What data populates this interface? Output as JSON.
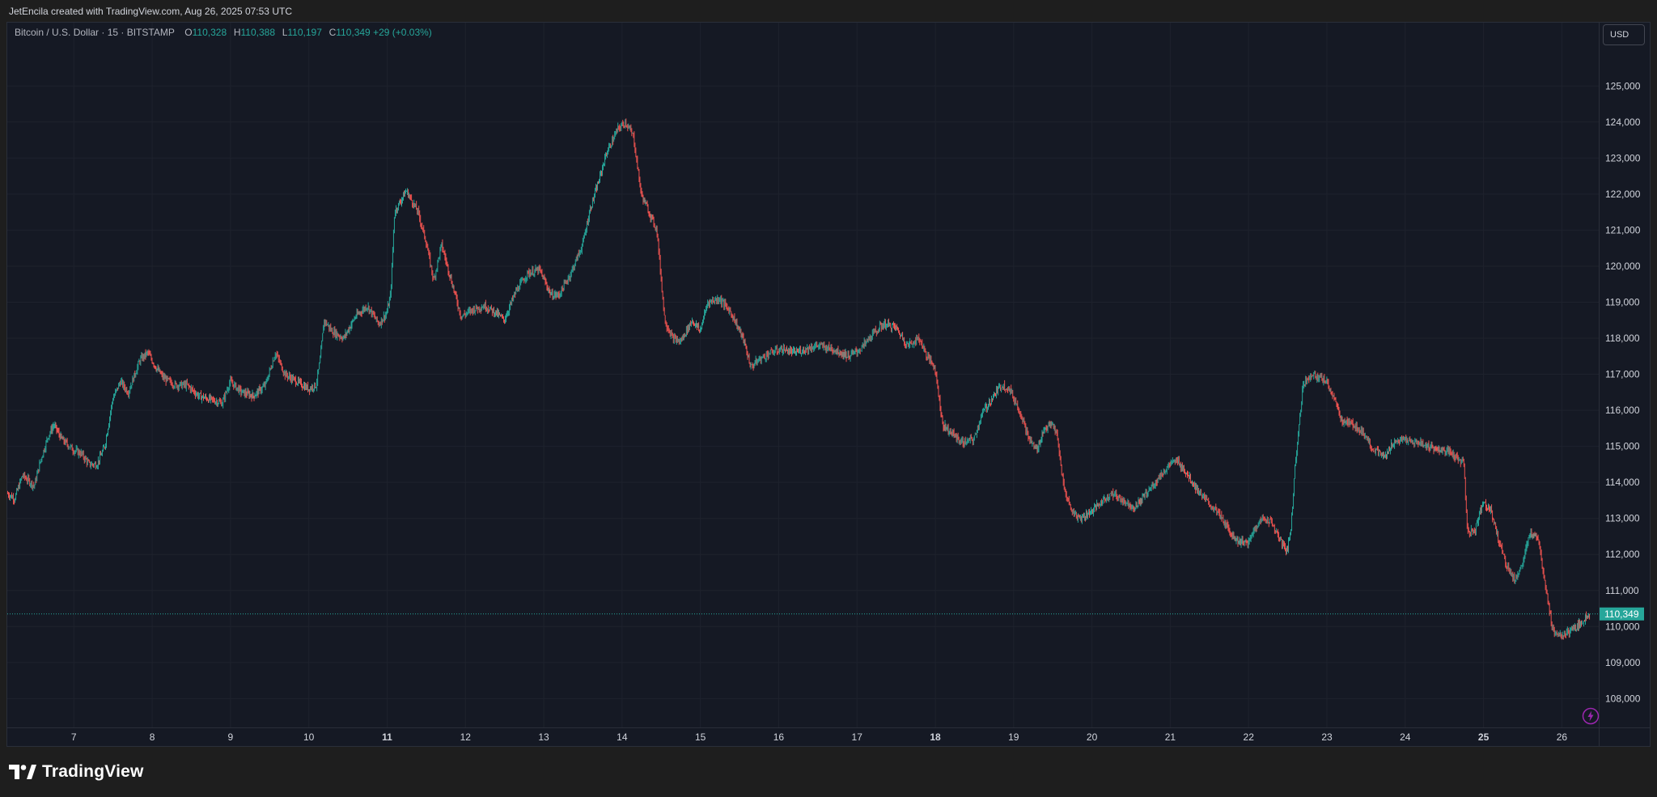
{
  "header": {
    "attribution": "JetEncila created with TradingView.com, Aug 26, 2025 07:53 UTC"
  },
  "legend": {
    "symbol": "Bitcoin / U.S. Dollar · 15 · BITSTAMP",
    "open_label": "O",
    "open": "110,328",
    "high_label": "H",
    "high": "110,388",
    "low_label": "L",
    "low": "110,197",
    "close_label": "C",
    "close": "110,349",
    "change": "+29 (+0.03%)"
  },
  "currency_button": {
    "label": "USD"
  },
  "footer": {
    "brand": "TradingView",
    "brand_icon": "tradingview-logo-icon"
  },
  "colors": {
    "background": "#151924",
    "up": "#26a69a",
    "down": "#ef5350",
    "grid": "#1e222d",
    "axis_text": "#d1d4dc"
  },
  "chart_data": {
    "type": "candlestick",
    "symbol": "BTCUSD",
    "interval": "15",
    "exchange": "BITSTAMP",
    "y_axis": {
      "position": "right",
      "range": [
        107200,
        126600
      ],
      "ticks": [
        108000,
        109000,
        110000,
        111000,
        112000,
        113000,
        114000,
        115000,
        116000,
        117000,
        118000,
        119000,
        120000,
        121000,
        122000,
        123000,
        124000,
        125000
      ],
      "tick_labels": [
        "108,000",
        "109,000",
        "110,000",
        "111,000",
        "112,000",
        "113,000",
        "114,000",
        "115,000",
        "116,000",
        "117,000",
        "118,000",
        "119,000",
        "120,000",
        "121,000",
        "122,000",
        "123,000",
        "124,000",
        "125,000"
      ]
    },
    "x_axis": {
      "unit": "day (Aug 2025)",
      "range": [
        6.15,
        26.43
      ],
      "ticks": [
        7,
        8,
        9,
        10,
        11,
        12,
        13,
        14,
        15,
        16,
        17,
        18,
        19,
        20,
        21,
        22,
        23,
        24,
        25,
        26
      ],
      "tick_labels": [
        "7",
        "8",
        "9",
        "10",
        "11",
        "12",
        "13",
        "14",
        "15",
        "16",
        "17",
        "18",
        "19",
        "20",
        "21",
        "22",
        "23",
        "24",
        "25",
        "26"
      ],
      "bold_ticks": [
        "11",
        "18",
        "25"
      ]
    },
    "grid": true,
    "last_price": {
      "value": 110349,
      "label": "110,349"
    },
    "price_path": [
      [
        6.15,
        113700
      ],
      [
        6.25,
        113550
      ],
      [
        6.35,
        114200
      ],
      [
        6.5,
        113900
      ],
      [
        6.58,
        114600
      ],
      [
        6.68,
        115300
      ],
      [
        6.75,
        115600
      ],
      [
        6.85,
        115200
      ],
      [
        7.0,
        114900
      ],
      [
        7.1,
        114800
      ],
      [
        7.2,
        114500
      ],
      [
        7.3,
        114500
      ],
      [
        7.4,
        115000
      ],
      [
        7.5,
        116300
      ],
      [
        7.6,
        116800
      ],
      [
        7.7,
        116500
      ],
      [
        7.85,
        117400
      ],
      [
        7.95,
        117600
      ],
      [
        8.05,
        117200
      ],
      [
        8.15,
        116900
      ],
      [
        8.3,
        116700
      ],
      [
        8.45,
        116700
      ],
      [
        8.6,
        116400
      ],
      [
        8.75,
        116300
      ],
      [
        8.9,
        116200
      ],
      [
        9.0,
        116800
      ],
      [
        9.15,
        116500
      ],
      [
        9.3,
        116400
      ],
      [
        9.45,
        116700
      ],
      [
        9.58,
        117600
      ],
      [
        9.7,
        117000
      ],
      [
        9.85,
        116800
      ],
      [
        10.0,
        116600
      ],
      [
        10.1,
        116700
      ],
      [
        10.15,
        117400
      ],
      [
        10.2,
        118500
      ],
      [
        10.3,
        118200
      ],
      [
        10.45,
        118000
      ],
      [
        10.6,
        118600
      ],
      [
        10.75,
        118900
      ],
      [
        10.9,
        118400
      ],
      [
        11.0,
        118700
      ],
      [
        11.05,
        119200
      ],
      [
        11.1,
        121500
      ],
      [
        11.25,
        122100
      ],
      [
        11.4,
        121500
      ],
      [
        11.5,
        120700
      ],
      [
        11.6,
        119600
      ],
      [
        11.7,
        120600
      ],
      [
        11.8,
        119800
      ],
      [
        11.95,
        118600
      ],
      [
        12.1,
        118800
      ],
      [
        12.25,
        118900
      ],
      [
        12.4,
        118700
      ],
      [
        12.5,
        118500
      ],
      [
        12.65,
        119300
      ],
      [
        12.8,
        119800
      ],
      [
        12.95,
        119900
      ],
      [
        13.1,
        119200
      ],
      [
        13.2,
        119200
      ],
      [
        13.35,
        119800
      ],
      [
        13.5,
        120600
      ],
      [
        13.6,
        121600
      ],
      [
        13.7,
        122300
      ],
      [
        13.8,
        123100
      ],
      [
        13.95,
        123800
      ],
      [
        14.05,
        124000
      ],
      [
        14.15,
        123600
      ],
      [
        14.25,
        122000
      ],
      [
        14.35,
        121500
      ],
      [
        14.45,
        121000
      ],
      [
        14.55,
        118500
      ],
      [
        14.65,
        118000
      ],
      [
        14.75,
        117900
      ],
      [
        14.9,
        118500
      ],
      [
        15.0,
        118200
      ],
      [
        15.1,
        119000
      ],
      [
        15.25,
        119100
      ],
      [
        15.4,
        118700
      ],
      [
        15.55,
        118000
      ],
      [
        15.65,
        117200
      ],
      [
        15.75,
        117400
      ],
      [
        15.9,
        117600
      ],
      [
        16.05,
        117700
      ],
      [
        16.2,
        117600
      ],
      [
        16.35,
        117700
      ],
      [
        16.5,
        117800
      ],
      [
        16.7,
        117700
      ],
      [
        16.9,
        117500
      ],
      [
        17.05,
        117700
      ],
      [
        17.2,
        118100
      ],
      [
        17.35,
        118400
      ],
      [
        17.5,
        118300
      ],
      [
        17.65,
        117800
      ],
      [
        17.8,
        118000
      ],
      [
        17.9,
        117500
      ],
      [
        18.0,
        117200
      ],
      [
        18.1,
        115600
      ],
      [
        18.2,
        115400
      ],
      [
        18.35,
        115100
      ],
      [
        18.5,
        115200
      ],
      [
        18.6,
        115900
      ],
      [
        18.75,
        116400
      ],
      [
        18.85,
        116700
      ],
      [
        18.95,
        116600
      ],
      [
        19.1,
        115900
      ],
      [
        19.2,
        115200
      ],
      [
        19.3,
        114900
      ],
      [
        19.4,
        115500
      ],
      [
        19.5,
        115600
      ],
      [
        19.55,
        115400
      ],
      [
        19.65,
        113800
      ],
      [
        19.75,
        113200
      ],
      [
        19.85,
        113000
      ],
      [
        20.0,
        113200
      ],
      [
        20.1,
        113400
      ],
      [
        20.25,
        113700
      ],
      [
        20.4,
        113500
      ],
      [
        20.55,
        113300
      ],
      [
        20.7,
        113700
      ],
      [
        20.85,
        114100
      ],
      [
        21.0,
        114500
      ],
      [
        21.1,
        114600
      ],
      [
        21.2,
        114300
      ],
      [
        21.35,
        113800
      ],
      [
        21.5,
        113400
      ],
      [
        21.6,
        113200
      ],
      [
        21.75,
        112700
      ],
      [
        21.85,
        112400
      ],
      [
        22.0,
        112300
      ],
      [
        22.1,
        112800
      ],
      [
        22.2,
        113000
      ],
      [
        22.3,
        112900
      ],
      [
        22.4,
        112400
      ],
      [
        22.5,
        112100
      ],
      [
        22.55,
        112800
      ],
      [
        22.6,
        114500
      ],
      [
        22.7,
        116700
      ],
      [
        22.8,
        117000
      ],
      [
        22.9,
        116900
      ],
      [
        23.0,
        116800
      ],
      [
        23.1,
        116300
      ],
      [
        23.2,
        115700
      ],
      [
        23.35,
        115600
      ],
      [
        23.5,
        115300
      ],
      [
        23.6,
        114900
      ],
      [
        23.75,
        114700
      ],
      [
        23.85,
        115100
      ],
      [
        24.0,
        115200
      ],
      [
        24.1,
        115100
      ],
      [
        24.2,
        115100
      ],
      [
        24.3,
        115000
      ],
      [
        24.45,
        114900
      ],
      [
        24.6,
        114800
      ],
      [
        24.7,
        114600
      ],
      [
        24.75,
        114600
      ],
      [
        24.8,
        112600
      ],
      [
        24.9,
        112700
      ],
      [
        25.0,
        113500
      ],
      [
        25.1,
        113200
      ],
      [
        25.2,
        112400
      ],
      [
        25.3,
        111700
      ],
      [
        25.4,
        111300
      ],
      [
        25.5,
        111700
      ],
      [
        25.6,
        112600
      ],
      [
        25.7,
        112500
      ],
      [
        25.8,
        111100
      ],
      [
        25.88,
        110000
      ],
      [
        25.95,
        109700
      ],
      [
        26.05,
        109800
      ],
      [
        26.15,
        109900
      ],
      [
        26.25,
        110100
      ],
      [
        26.35,
        110349
      ]
    ]
  }
}
